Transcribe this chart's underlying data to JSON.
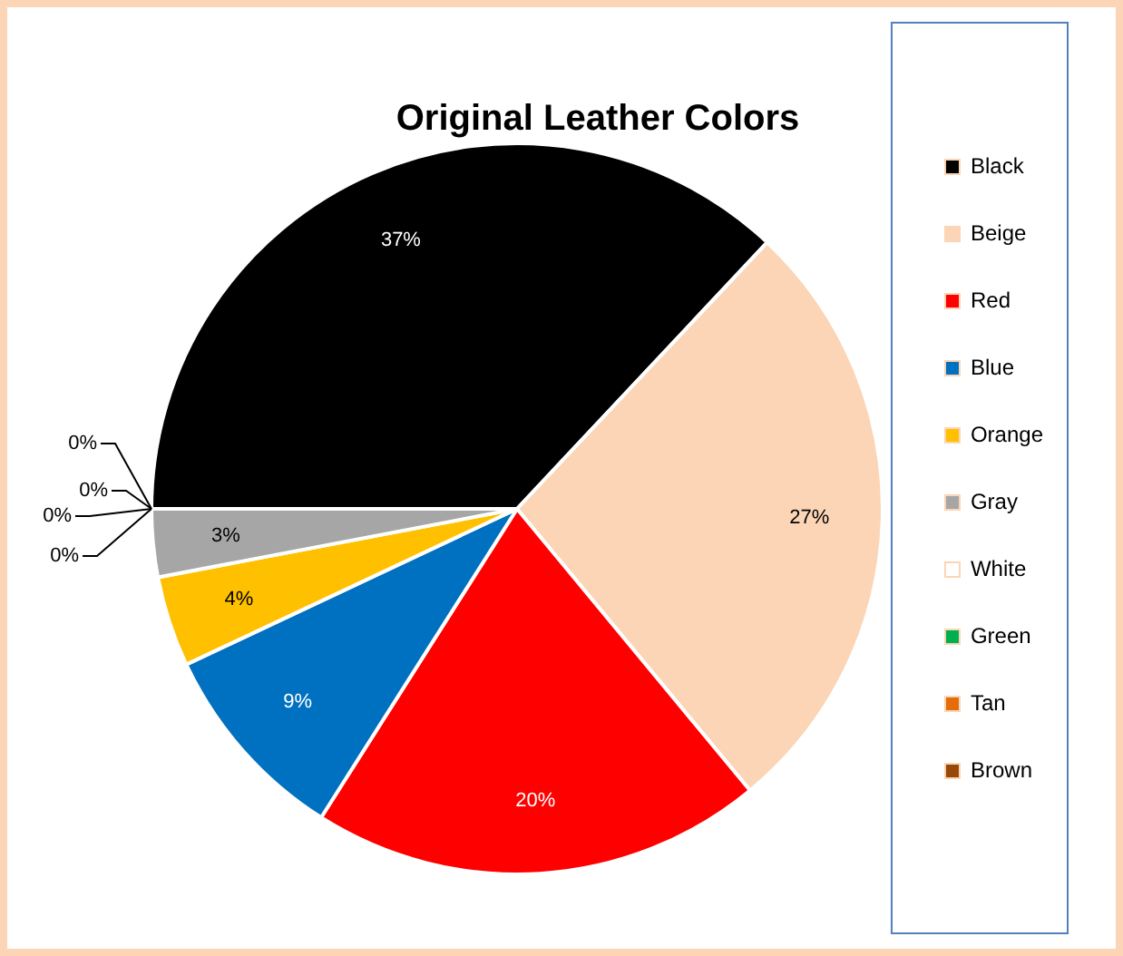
{
  "chart_data": {
    "type": "pie",
    "title": "Original Leather Colors",
    "categories": [
      "Black",
      "Beige",
      "Red",
      "Blue",
      "Orange",
      "Gray",
      "White",
      "Green",
      "Tan",
      "Brown"
    ],
    "values": [
      37,
      27,
      20,
      9,
      4,
      3,
      0,
      0,
      0,
      0
    ],
    "colors": [
      "#000000",
      "#fbd5b5",
      "#ff0000",
      "#0070c0",
      "#ffc000",
      "#a6a6a6",
      "#ffffff",
      "#00b050",
      "#e46c0a",
      "#984807"
    ],
    "value_labels": [
      "37%",
      "27%",
      "20%",
      "9%",
      "4%",
      "3%",
      "0%",
      "0%",
      "0%",
      "0%"
    ],
    "legend": "right"
  }
}
